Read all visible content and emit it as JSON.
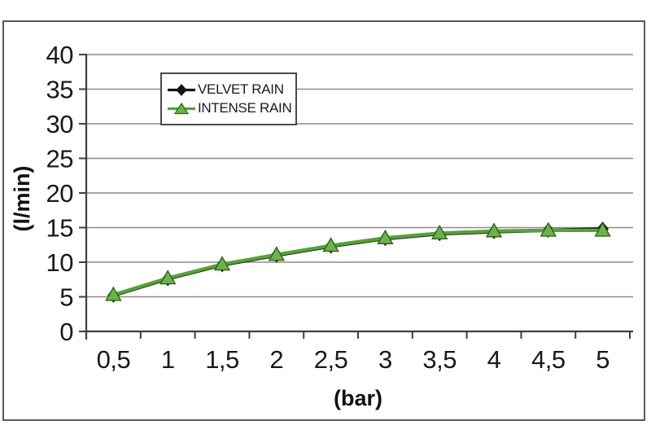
{
  "chart_data": {
    "type": "line",
    "title": "",
    "xlabel": "(bar)",
    "ylabel": "(l/min)",
    "x_categories": [
      "0,5",
      "1",
      "1,5",
      "2",
      "2,5",
      "3",
      "3,5",
      "4",
      "4,5",
      "5"
    ],
    "x_values": [
      0.5,
      1,
      1.5,
      2,
      2.5,
      3,
      3.5,
      4,
      4.5,
      5
    ],
    "ylim": [
      0,
      40
    ],
    "y_ticks": [
      0,
      5,
      10,
      15,
      20,
      25,
      30,
      35,
      40
    ],
    "y_tick_labels": [
      "0",
      "5",
      "10",
      "15",
      "20",
      "25",
      "30",
      "35",
      "40"
    ],
    "grid": true,
    "legend_position": "inside-top-left",
    "series": [
      {
        "name": "VELVET RAIN",
        "marker": "diamond",
        "color": "#141414",
        "marker_fill": "#141414",
        "marker_edge": "#141414",
        "values": [
          5.2,
          7.6,
          9.6,
          11.0,
          12.3,
          13.4,
          14.1,
          14.4,
          14.6,
          14.8
        ]
      },
      {
        "name": "INTENSE RAIN",
        "marker": "triangle-up",
        "color": "#55a337",
        "marker_fill": "#6cb44a",
        "marker_edge": "#2c641a",
        "values": [
          5.3,
          7.7,
          9.7,
          11.1,
          12.4,
          13.5,
          14.2,
          14.5,
          14.6,
          14.6
        ]
      }
    ]
  },
  "colors": {
    "grid": "#8c8c8c",
    "axis": "#3f3f3f",
    "tick_text": "#1a1a1a",
    "frame_border": "#585858",
    "background": "#ffffff"
  }
}
